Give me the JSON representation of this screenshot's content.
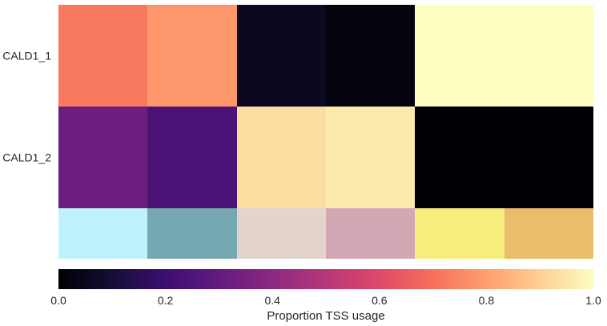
{
  "chart_data": {
    "type": "heatmap",
    "colormap": "magma",
    "rows": [
      "CALD1_1",
      "CALD1_2"
    ],
    "n_columns": 6,
    "values": [
      [
        0.72,
        0.78,
        0.06,
        0.02,
        1.0,
        1.0
      ],
      [
        0.32,
        0.24,
        0.93,
        0.96,
        0.0,
        0.0
      ]
    ],
    "annotation_colors": [
      "#bff2fd",
      "#76a8b2",
      "#e3d5ce",
      "#d3a8b5",
      "#f6ed7d",
      "#eabd6b"
    ],
    "colorbar": {
      "label": "Proportion TSS usage",
      "range": [
        0.0,
        1.0
      ],
      "ticks": [
        "0.0",
        "0.2",
        "0.4",
        "0.6",
        "0.8",
        "1.0"
      ]
    }
  }
}
